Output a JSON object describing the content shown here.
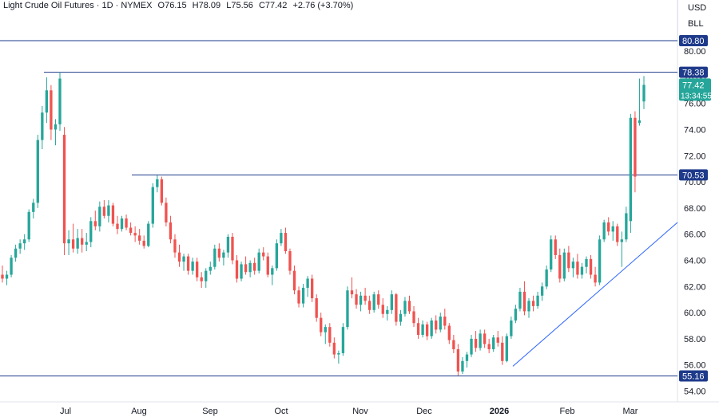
{
  "legend": {
    "symbol": "Light Crude Oil Futures · 1D · NYMEX",
    "open": "O76.15",
    "high": "H78.09",
    "low": "L75.56",
    "close": "C77.42",
    "change": "+2.76 (+3.70%)"
  },
  "currency_label": "USD",
  "unit_label": "BLL",
  "colors": {
    "up": "#26a69a",
    "down": "#ef5350",
    "line": "#2962ff",
    "line_label_bg": "#1e3a8a",
    "current_price_bg": "#26a69a",
    "axis_text": "#131722"
  },
  "chart_data": {
    "type": "candlestick",
    "title": "Light Crude Oil Futures · 1D · NYMEX",
    "ylim": [
      54,
      81
    ],
    "y_ticks": [
      "54.00",
      "56.00",
      "58.00",
      "60.00",
      "62.00",
      "64.00",
      "66.00",
      "68.00",
      "70.00",
      "72.00",
      "74.00",
      "76.00",
      "78.00",
      "80.00"
    ],
    "x_labels": [
      "Jul",
      "Aug",
      "Sep",
      "Oct",
      "Nov",
      "Dec",
      "2026",
      "Feb",
      "Mar"
    ],
    "horizontal_levels": [
      "80.80",
      "78.38",
      "70.53",
      "55.16"
    ],
    "trendline": {
      "from": [
        "Jan 2026",
        55.9
      ],
      "to": [
        "Mar 2026",
        66.9
      ]
    },
    "current_price": "77.42",
    "countdown": "13:34:55",
    "candles": [
      [
        62.9,
        63.6,
        62.3,
        62.6
      ],
      [
        62.6,
        63.2,
        62.1,
        62.9
      ],
      [
        62.9,
        64.4,
        62.7,
        64.2
      ],
      [
        64.2,
        65.2,
        63.9,
        64.9
      ],
      [
        64.9,
        65.6,
        64.5,
        65.3
      ],
      [
        65.3,
        66.0,
        64.8,
        65.6
      ],
      [
        65.6,
        67.9,
        65.4,
        67.7
      ],
      [
        67.7,
        68.7,
        67.2,
        68.4
      ],
      [
        68.4,
        73.6,
        68.0,
        73.2
      ],
      [
        73.2,
        75.8,
        72.5,
        75.3
      ],
      [
        75.3,
        78.0,
        74.5,
        77.0
      ],
      [
        77.0,
        77.4,
        73.2,
        74.0
      ],
      [
        74.0,
        74.8,
        72.8,
        74.4
      ],
      [
        74.4,
        78.4,
        73.9,
        77.9
      ],
      [
        73.6,
        74.2,
        64.4,
        65.3
      ],
      [
        65.3,
        66.3,
        64.4,
        65.6
      ],
      [
        65.6,
        66.8,
        64.6,
        64.9
      ],
      [
        64.9,
        66.4,
        64.5,
        65.7
      ],
      [
        65.7,
        66.4,
        64.6,
        65.2
      ],
      [
        65.2,
        66.1,
        64.7,
        65.4
      ],
      [
        65.4,
        67.3,
        65.0,
        67.0
      ],
      [
        67.0,
        67.8,
        66.3,
        66.6
      ],
      [
        66.6,
        68.5,
        66.2,
        68.1
      ],
      [
        68.1,
        68.6,
        67.2,
        67.4
      ],
      [
        67.4,
        68.6,
        66.9,
        68.2
      ],
      [
        68.2,
        68.4,
        66.6,
        66.8
      ],
      [
        66.8,
        67.4,
        66.0,
        66.4
      ],
      [
        66.4,
        67.4,
        66.2,
        67.2
      ],
      [
        67.2,
        67.5,
        66.3,
        66.5
      ],
      [
        66.5,
        66.9,
        65.9,
        66.1
      ],
      [
        66.1,
        66.6,
        65.4,
        65.9
      ],
      [
        65.9,
        66.4,
        65.2,
        65.5
      ],
      [
        65.5,
        65.9,
        64.9,
        65.1
      ],
      [
        65.1,
        67.0,
        65.0,
        66.8
      ],
      [
        66.8,
        69.9,
        66.5,
        69.6
      ],
      [
        69.6,
        70.5,
        69.2,
        70.2
      ],
      [
        70.2,
        70.4,
        68.2,
        68.4
      ],
      [
        68.4,
        68.8,
        66.6,
        66.9
      ],
      [
        66.9,
        67.4,
        65.3,
        65.6
      ],
      [
        65.6,
        66.0,
        64.2,
        64.6
      ],
      [
        64.6,
        65.2,
        63.5,
        63.9
      ],
      [
        63.9,
        64.5,
        63.2,
        64.3
      ],
      [
        64.3,
        64.5,
        62.9,
        63.2
      ],
      [
        63.2,
        64.2,
        62.9,
        63.9
      ],
      [
        63.9,
        64.2,
        62.4,
        62.7
      ],
      [
        62.7,
        63.1,
        61.9,
        62.4
      ],
      [
        62.4,
        63.4,
        61.9,
        63.2
      ],
      [
        63.2,
        63.9,
        62.9,
        63.5
      ],
      [
        63.5,
        65.2,
        63.3,
        64.9
      ],
      [
        64.9,
        65.3,
        63.9,
        64.2
      ],
      [
        64.2,
        64.8,
        63.6,
        64.6
      ],
      [
        64.6,
        66.0,
        64.2,
        65.8
      ],
      [
        65.8,
        66.1,
        63.7,
        64.0
      ],
      [
        64.0,
        64.4,
        62.3,
        62.6
      ],
      [
        62.6,
        63.9,
        62.4,
        63.7
      ],
      [
        63.7,
        64.3,
        62.9,
        63.1
      ],
      [
        63.1,
        64.0,
        62.7,
        63.8
      ],
      [
        63.8,
        64.2,
        62.9,
        63.2
      ],
      [
        63.2,
        64.9,
        63.0,
        64.6
      ],
      [
        64.6,
        65.0,
        64.0,
        64.3
      ],
      [
        64.3,
        64.6,
        62.7,
        62.9
      ],
      [
        62.9,
        63.6,
        62.1,
        63.4
      ],
      [
        63.4,
        65.6,
        63.2,
        65.3
      ],
      [
        65.3,
        66.4,
        65.1,
        66.1
      ],
      [
        66.1,
        66.5,
        64.5,
        64.7
      ],
      [
        64.7,
        64.9,
        62.9,
        63.2
      ],
      [
        63.2,
        63.6,
        61.4,
        61.7
      ],
      [
        61.7,
        62.0,
        60.4,
        60.7
      ],
      [
        60.7,
        62.2,
        60.4,
        61.9
      ],
      [
        61.9,
        62.8,
        61.2,
        62.6
      ],
      [
        62.6,
        62.9,
        60.8,
        61.1
      ],
      [
        61.1,
        61.4,
        59.3,
        59.6
      ],
      [
        59.6,
        60.0,
        58.2,
        58.5
      ],
      [
        58.5,
        59.1,
        57.6,
        58.9
      ],
      [
        58.9,
        59.2,
        57.4,
        57.7
      ],
      [
        57.7,
        58.1,
        56.5,
        56.8
      ],
      [
        56.8,
        57.1,
        56.1,
        56.9
      ],
      [
        56.9,
        59.2,
        56.7,
        58.9
      ],
      [
        58.9,
        62.0,
        58.7,
        61.7
      ],
      [
        61.7,
        62.7,
        61.1,
        61.4
      ],
      [
        61.4,
        61.8,
        60.3,
        60.6
      ],
      [
        60.6,
        61.6,
        60.1,
        61.3
      ],
      [
        61.3,
        61.9,
        60.6,
        60.9
      ],
      [
        60.9,
        61.3,
        59.9,
        60.2
      ],
      [
        60.2,
        61.6,
        60.0,
        61.4
      ],
      [
        61.4,
        61.7,
        60.3,
        60.6
      ],
      [
        60.6,
        61.1,
        59.6,
        59.9
      ],
      [
        59.9,
        60.5,
        59.4,
        60.2
      ],
      [
        60.2,
        61.7,
        59.9,
        61.4
      ],
      [
        61.4,
        61.5,
        59.0,
        59.3
      ],
      [
        59.3,
        60.2,
        59.0,
        59.9
      ],
      [
        59.9,
        61.2,
        59.7,
        60.9
      ],
      [
        60.9,
        61.3,
        59.9,
        60.1
      ],
      [
        60.1,
        60.5,
        58.9,
        59.2
      ],
      [
        59.2,
        59.6,
        58.0,
        58.3
      ],
      [
        58.3,
        59.4,
        58.1,
        59.1
      ],
      [
        59.1,
        59.3,
        57.9,
        58.2
      ],
      [
        58.2,
        59.6,
        58.0,
        59.4
      ],
      [
        59.4,
        59.8,
        58.4,
        58.7
      ],
      [
        58.7,
        60.0,
        58.5,
        59.7
      ],
      [
        59.7,
        60.3,
        58.7,
        59.0
      ],
      [
        59.0,
        59.2,
        57.6,
        57.9
      ],
      [
        57.9,
        58.3,
        56.9,
        57.2
      ],
      [
        57.2,
        57.6,
        55.2,
        55.5
      ],
      [
        55.5,
        56.6,
        55.3,
        56.3
      ],
      [
        56.3,
        57.0,
        55.8,
        56.8
      ],
      [
        56.8,
        58.3,
        56.6,
        58.0
      ],
      [
        58.0,
        58.6,
        57.0,
        57.3
      ],
      [
        57.3,
        58.7,
        57.1,
        58.4
      ],
      [
        58.4,
        58.7,
        57.3,
        57.6
      ],
      [
        57.6,
        58.0,
        56.9,
        57.2
      ],
      [
        57.2,
        58.3,
        57.0,
        58.1
      ],
      [
        58.1,
        58.6,
        57.4,
        57.7
      ],
      [
        57.7,
        58.2,
        56.0,
        56.3
      ],
      [
        56.3,
        58.4,
        56.2,
        58.2
      ],
      [
        58.2,
        59.7,
        58.0,
        59.4
      ],
      [
        59.4,
        60.6,
        59.2,
        60.3
      ],
      [
        60.3,
        61.9,
        60.1,
        61.6
      ],
      [
        61.6,
        62.4,
        59.8,
        60.1
      ],
      [
        60.1,
        61.1,
        59.6,
        60.9
      ],
      [
        60.9,
        61.3,
        60.1,
        60.5
      ],
      [
        60.5,
        61.6,
        60.3,
        61.3
      ],
      [
        61.3,
        62.3,
        60.9,
        62.0
      ],
      [
        62.0,
        63.6,
        61.8,
        63.3
      ],
      [
        63.3,
        65.9,
        63.1,
        65.6
      ],
      [
        65.6,
        65.9,
        64.1,
        64.4
      ],
      [
        64.4,
        64.9,
        62.3,
        62.6
      ],
      [
        62.6,
        64.9,
        62.4,
        64.6
      ],
      [
        64.6,
        65.1,
        63.1,
        63.4
      ],
      [
        63.4,
        64.2,
        62.7,
        63.9
      ],
      [
        63.9,
        64.5,
        62.6,
        62.9
      ],
      [
        62.9,
        63.8,
        62.6,
        63.5
      ],
      [
        63.5,
        64.3,
        63.0,
        64.1
      ],
      [
        64.1,
        64.4,
        62.6,
        62.9
      ],
      [
        62.9,
        63.5,
        62.0,
        62.3
      ],
      [
        62.3,
        65.9,
        62.1,
        65.6
      ],
      [
        65.6,
        67.1,
        65.4,
        66.9
      ],
      [
        66.9,
        67.3,
        65.9,
        66.2
      ],
      [
        66.2,
        67.0,
        65.5,
        66.6
      ],
      [
        66.6,
        66.8,
        65.1,
        65.4
      ],
      [
        65.4,
        66.2,
        63.5,
        65.6
      ],
      [
        65.6,
        68.1,
        65.4,
        67.6
      ],
      [
        67.0,
        75.2,
        66.1,
        74.9
      ],
      [
        74.9,
        75.4,
        69.2,
        70.4
      ],
      [
        74.5,
        77.9,
        74.3,
        74.7
      ],
      [
        76.15,
        78.09,
        75.56,
        77.42
      ]
    ]
  }
}
